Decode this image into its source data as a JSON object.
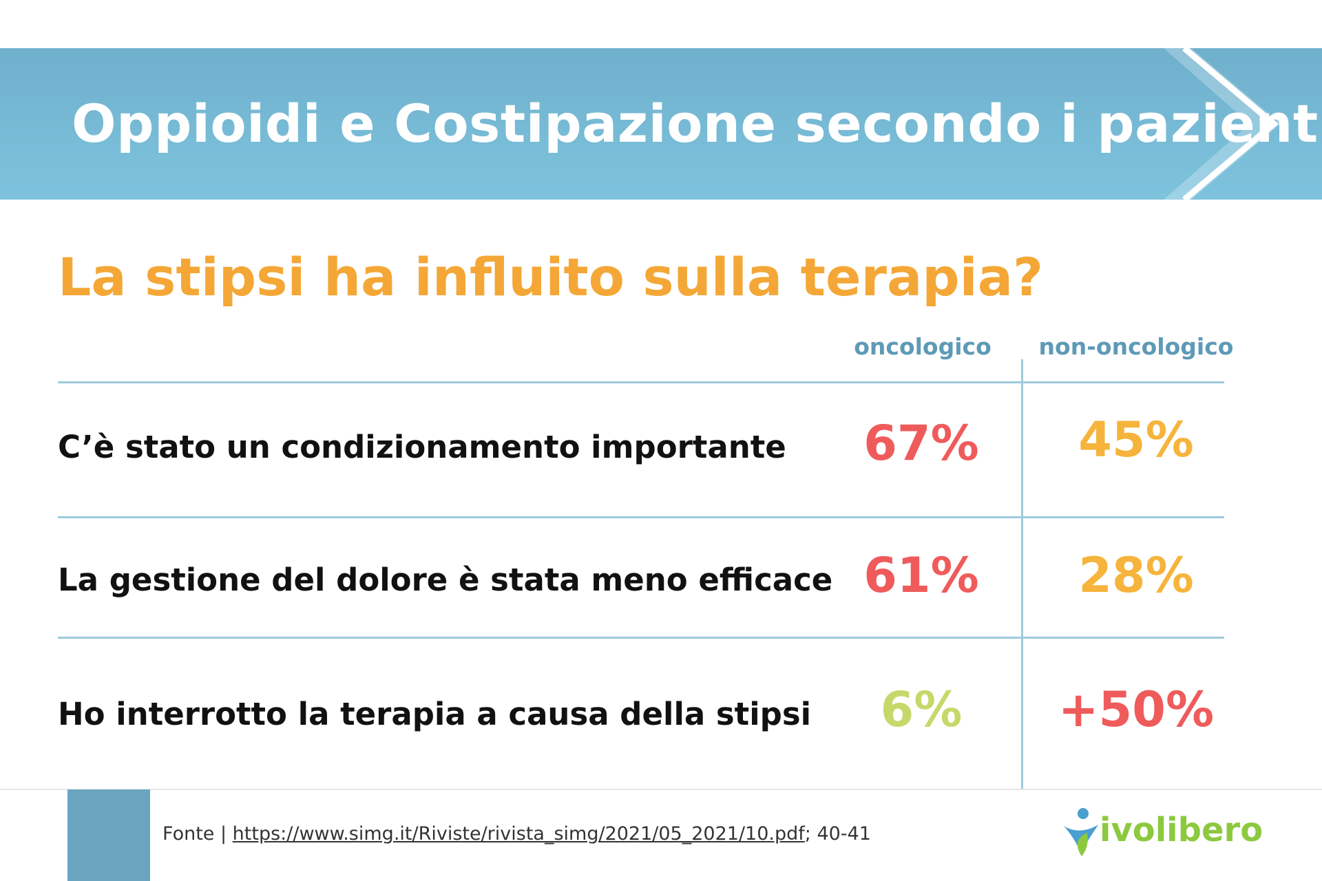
{
  "banner": {
    "title": "Oppioidi e Costipazione secondo i pazienti"
  },
  "question": "La stipsi ha influito sulla terapia?",
  "columns": [
    "oncologico",
    "non-oncologico"
  ],
  "rows": [
    {
      "label": "C’è stato un condizionamento importante",
      "oncologico": "67%",
      "non_oncologico": "45%"
    },
    {
      "label": "La gestione del dolore è stata meno efficace",
      "oncologico": "61%",
      "non_oncologico": "28%"
    },
    {
      "label": "Ho interrotto la terapia a causa della stipsi",
      "oncologico": "6%",
      "non_oncologico": "+50%"
    }
  ],
  "colors": {
    "banner": "#7ec3dd",
    "question": "#f4a736",
    "header": "#5e9ab6",
    "red": "#ef5b5b",
    "orange": "#f6b43c",
    "green": "#c5d96a",
    "logo": "#8cc93f"
  },
  "footer": {
    "prefix": "Fonte | ",
    "link": "https://www.simg.it/Riviste/rivista_simg/2021/05_2021/10.pdf",
    "suffix": "; 40-41"
  },
  "logo": {
    "text": "ivolibero",
    "icon": "person-leaf-icon"
  }
}
